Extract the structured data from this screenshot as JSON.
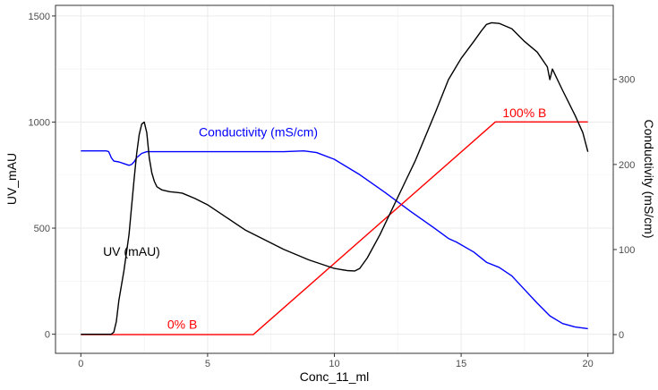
{
  "chart_data": {
    "type": "line",
    "xlabel": "Conc_11_ml",
    "ylabel": "UV_mAU",
    "y2label": "Conductivity (mS/cm)",
    "xlim": [
      -1,
      21
    ],
    "ylim": [
      -90,
      1550
    ],
    "y2lim": [
      -22,
      387
    ],
    "x_ticks": [
      0,
      5,
      10,
      15,
      20
    ],
    "y_ticks": [
      0,
      500,
      1000,
      1500
    ],
    "y2_ticks": [
      0,
      100,
      200,
      300
    ],
    "grid": true,
    "colors": {
      "uv": "#000000",
      "conductivity": "#0000ff",
      "gradient": "#ff0000"
    },
    "annotations": [
      {
        "text": "UV (mAU)",
        "x": 2.0,
        "y": 390,
        "color": "#000000",
        "axis": "left"
      },
      {
        "text": "Conductivity (mS/cm)",
        "x": 7.0,
        "y": 238,
        "color": "#0000ff",
        "axis": "right"
      },
      {
        "text": "0% B",
        "x": 4.0,
        "y": 12,
        "color": "#ff0000",
        "axis": "right"
      },
      {
        "text": "100% B",
        "x": 17.5,
        "y": 261,
        "color": "#ff0000",
        "axis": "right"
      }
    ],
    "series": [
      {
        "name": "UV (mAU)",
        "axis": "left",
        "color": "#000000",
        "x": [
          0,
          1.2,
          1.3,
          1.4,
          1.5,
          1.7,
          1.9,
          2.0,
          2.1,
          2.2,
          2.3,
          2.4,
          2.5,
          2.6,
          2.7,
          2.8,
          2.9,
          3.0,
          3.2,
          3.5,
          3.8,
          4.0,
          4.5,
          5.0,
          5.5,
          6.0,
          6.5,
          7.0,
          8.0,
          9.0,
          10.0,
          10.5,
          10.8,
          11.0,
          11.3,
          11.8,
          12.2,
          12.8,
          13.2,
          14.0,
          14.5,
          15.0,
          15.5,
          15.8,
          16.0,
          16.2,
          16.5,
          17.0,
          17.5,
          18.0,
          18.4,
          18.5,
          18.6,
          19.0,
          19.5,
          19.8,
          20.0
        ],
        "y": [
          0,
          0,
          10,
          60,
          160,
          300,
          470,
          600,
          730,
          850,
          940,
          990,
          1000,
          950,
          830,
          760,
          720,
          695,
          680,
          672,
          668,
          665,
          640,
          610,
          570,
          530,
          490,
          460,
          400,
          350,
          310,
          300,
          298,
          310,
          360,
          470,
          570,
          720,
          820,
          1050,
          1200,
          1300,
          1380,
          1430,
          1460,
          1468,
          1465,
          1440,
          1380,
          1330,
          1260,
          1200,
          1250,
          1150,
          1030,
          950,
          860
        ]
      },
      {
        "name": "Conductivity (mS/cm)",
        "axis": "right",
        "color": "#0000ff",
        "x": [
          0,
          1.0,
          1.1,
          1.2,
          1.3,
          1.5,
          1.7,
          1.9,
          2.0,
          2.1,
          2.2,
          2.4,
          2.6,
          3.0,
          4.0,
          6.0,
          8.0,
          8.8,
          9.3,
          10.0,
          11.0,
          12.0,
          13.0,
          14.0,
          14.5,
          14.8,
          15.5,
          16.0,
          16.5,
          17.0,
          17.5,
          18.0,
          18.5,
          19.0,
          19.5,
          20.0
        ],
        "y": [
          216,
          216,
          215,
          208,
          204,
          203,
          201,
          199,
          200,
          203,
          208,
          213,
          215,
          215,
          215,
          215,
          215,
          216,
          214,
          206,
          188,
          167,
          145,
          124,
          113,
          109,
          97,
          85,
          79,
          69,
          53,
          37,
          22,
          13,
          9,
          7
        ]
      },
      {
        "name": "% B",
        "axis": "right",
        "color": "#ff0000",
        "x": [
          0,
          6.8,
          16.35,
          20.0
        ],
        "y": [
          0,
          0,
          250,
          250
        ]
      }
    ]
  }
}
